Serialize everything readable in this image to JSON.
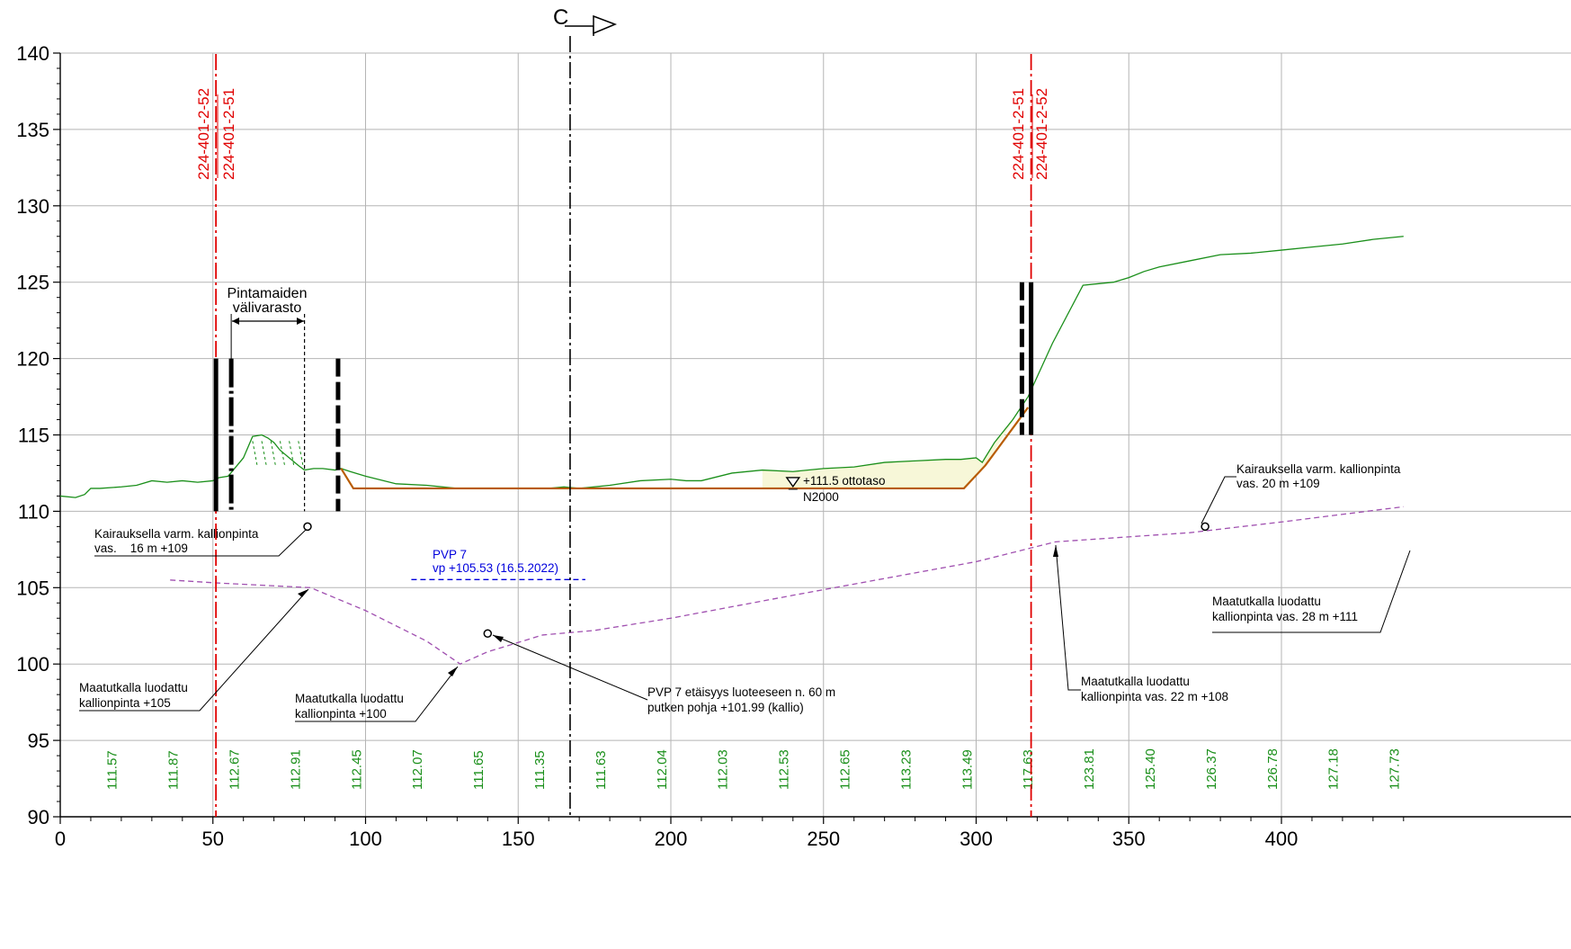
{
  "axes": {
    "x_range": [
      0,
      440
    ],
    "y_range": [
      90,
      140
    ],
    "x_ticks": [
      "0",
      "50",
      "100",
      "150",
      "200",
      "250",
      "300",
      "350",
      "400"
    ],
    "y_ticks": [
      "90",
      "95",
      "100",
      "105",
      "110",
      "115",
      "120",
      "125",
      "130",
      "135",
      "140"
    ]
  },
  "section_mark": {
    "label": "C"
  },
  "section_lines": {
    "left": {
      "top_label": "224-401-2-52",
      "bottom_label": "224-401-2-51"
    },
    "right": {
      "top_label": "224-401-2-51",
      "bottom_label": "224-401-2-52"
    }
  },
  "storage": {
    "line1": "Pintamaiden",
    "line2": "välivarasto"
  },
  "water": {
    "level": "+111.5 ottotaso",
    "system": "N2000"
  },
  "pvp": {
    "title": "PVP 7",
    "vp": "vp +105.53 (16.5.2022)"
  },
  "notes": {
    "kairaus_left_1": "Kairauksella varm. kallionpinta",
    "kairaus_left_2": "vas.    16 m +109",
    "kairaus_right_1": "Kairauksella varm. kallionpinta",
    "kairaus_right_2": "vas. 20 m +109",
    "maatutka105_1": "Maatutkalla luodattu",
    "maatutka105_2": "kallionpinta +105",
    "maatutka100_1": "Maatutkalla luodattu",
    "maatutka100_2": "kallionpinta +100",
    "pvp_dist_1": "PVP 7 etäisyys luoteeseen n. 60 m",
    "pvp_dist_2": "putken pohja +101.99 (kallio)",
    "maatutka108_1": "Maatutkalla luodattu",
    "maatutka108_2": "kallionpinta vas. 22 m +108",
    "maatutka111_1": "Maatutkalla luodattu",
    "maatutka111_2": "kallionpinta vas. 28 m +111"
  },
  "chart_data": {
    "type": "line",
    "x_unit": "station",
    "y_unit": "elevation",
    "series": [
      {
        "role": "ground",
        "color": "#1a8f1a",
        "x": [
          0,
          5,
          8,
          10,
          13,
          20,
          25,
          30,
          35,
          40,
          45,
          50,
          52,
          55,
          60,
          63,
          66,
          68,
          70,
          72,
          75,
          78,
          80,
          83,
          86,
          90,
          92,
          95,
          100,
          110,
          120,
          130,
          140,
          150,
          160,
          165,
          170,
          180,
          190,
          200,
          205,
          210,
          220,
          230,
          240,
          250,
          260,
          270,
          280,
          290,
          295,
          300,
          302,
          306,
          312,
          317,
          325,
          335,
          345,
          350,
          355,
          360,
          370,
          380,
          390,
          400,
          410,
          420,
          430,
          440
        ],
        "y": [
          111.0,
          110.9,
          111.1,
          111.5,
          111.5,
          111.6,
          111.7,
          112.0,
          111.9,
          112.0,
          111.9,
          112.0,
          112.2,
          112.3,
          113.5,
          114.9,
          115.0,
          114.8,
          114.5,
          114.0,
          113.5,
          113.0,
          112.7,
          112.8,
          112.8,
          112.7,
          112.8,
          112.6,
          112.3,
          111.8,
          111.7,
          111.5,
          111.5,
          111.5,
          111.5,
          111.6,
          111.5,
          111.7,
          112.0,
          112.1,
          112.0,
          112.0,
          112.5,
          112.7,
          112.6,
          112.8,
          112.9,
          113.2,
          113.3,
          113.4,
          113.4,
          113.5,
          113.2,
          114.5,
          116.0,
          117.5,
          121.0,
          124.8,
          125.0,
          125.3,
          125.7,
          126.0,
          126.4,
          126.8,
          126.9,
          127.1,
          127.3,
          127.5,
          127.8,
          128.0
        ]
      },
      {
        "role": "excavation",
        "color": "#b85c00",
        "x": [
          92,
          96,
          200,
          296,
          303,
          317
        ],
        "y": [
          112.8,
          111.5,
          111.5,
          111.5,
          113.0,
          116.8
        ]
      },
      {
        "role": "bedrock",
        "color": "#a050b0",
        "x": [
          36,
          52,
          82,
          100,
          120,
          131,
          140,
          158,
          175,
          200,
          240,
          300,
          318,
          326,
          370,
          400,
          440
        ],
        "y": [
          105.5,
          105.3,
          105.0,
          103.5,
          101.5,
          100.0,
          100.8,
          101.9,
          102.2,
          103.0,
          104.5,
          106.7,
          107.6,
          108.0,
          108.6,
          109.3,
          110.3
        ]
      },
      {
        "role": "groundwater",
        "color": "#0000dd",
        "x": [
          115,
          172
        ],
        "y": [
          105.53,
          105.53
        ]
      }
    ],
    "bottom_elevations": {
      "x": [
        17,
        37,
        57,
        77,
        97,
        117,
        137,
        157,
        177,
        197,
        217,
        237,
        257,
        277,
        297,
        317,
        337,
        357,
        377,
        397,
        417,
        437
      ],
      "labels": [
        "111.57",
        "111.87",
        "112.67",
        "112.91",
        "112.45",
        "112.07",
        "111.65",
        "111.35",
        "111.63",
        "112.04",
        "112.03",
        "112.53",
        "112.65",
        "113.23",
        "113.49",
        "117.63",
        "123.81",
        "125.40",
        "126.37",
        "126.78",
        "127.18",
        "127.73"
      ]
    },
    "red_section_lines_x": [
      51,
      318
    ],
    "section_c_x": 167,
    "wells": [
      {
        "x": 51,
        "style": "solid",
        "top": 120,
        "bottom": 110
      },
      {
        "x": 56,
        "style": "dashdot",
        "top": 120,
        "bottom": 110
      },
      {
        "x": 91,
        "style": "dashed",
        "top": 120,
        "bottom": 110
      },
      {
        "x": 315,
        "style": "dashed",
        "top": 125,
        "bottom": 115
      },
      {
        "x": 318,
        "style": "solid",
        "top": 125,
        "bottom": 115
      }
    ],
    "storage_extent_x": [
      56,
      80
    ],
    "probe_markers": [
      {
        "x": 81,
        "y": 109
      },
      {
        "x": 140,
        "y": 102
      },
      {
        "x": 375,
        "y": 109
      }
    ],
    "water_level_y": 111.5,
    "water_marker_x": 240
  }
}
